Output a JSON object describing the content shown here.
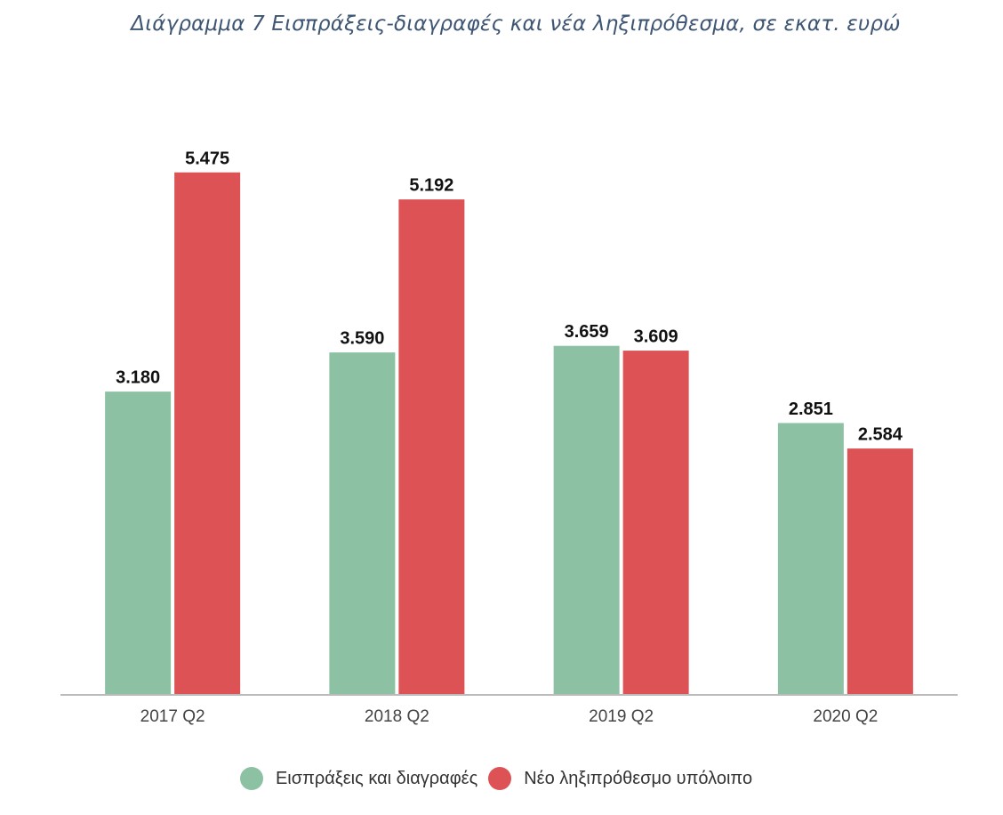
{
  "chart_data": {
    "type": "bar",
    "title": "Διάγραμμα 7 Εισπράξεις-διαγραφές και νέα ληξιπρόθεσμα, σε εκατ. ευρώ",
    "categories": [
      "2017 Q2",
      "2018 Q2",
      "2019 Q2",
      "2020 Q2"
    ],
    "series": [
      {
        "name": "Εισπράξεις και διαγραφές",
        "values": [
          3180,
          3590,
          3659,
          2851
        ],
        "labels": [
          "3.180",
          "3.590",
          "3.659",
          "2.851"
        ],
        "color": "#8dc1a4"
      },
      {
        "name": "Νέο ληξιπρόθεσμο υπόλοιπο",
        "values": [
          5475,
          5192,
          3609,
          2584
        ],
        "labels": [
          "5.475",
          "5.192",
          "3.609",
          "2.584"
        ],
        "color": "#dc5255"
      }
    ],
    "ylim": [
      0,
      6000
    ],
    "grid": false,
    "legend_position": "bottom",
    "xlabel": "",
    "ylabel": ""
  },
  "colors": {
    "title": "#3e5673",
    "axis": "#bbbbbb",
    "tick_label": "#444444",
    "data_label": "#111111"
  }
}
